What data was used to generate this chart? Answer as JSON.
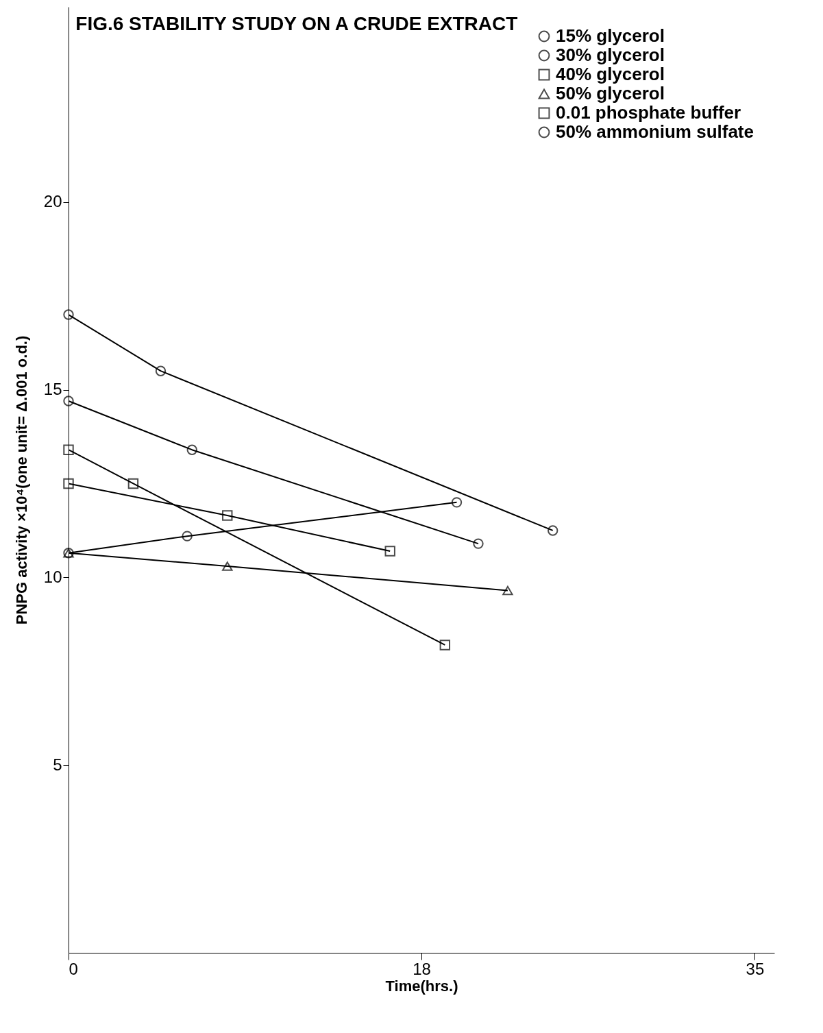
{
  "chart_data": {
    "type": "line",
    "title": "FIG.6  STABILITY  STUDY ON A CRUDE EXTRACT",
    "xlabel": "Time(hrs.)",
    "ylabel": "PNPG activity ×10⁴(one unit= Δ.001 o.d.)",
    "xlim": [
      0,
      36
    ],
    "xticks": [
      0,
      18,
      35
    ],
    "ylim": [
      0,
      25.2
    ],
    "yticks": [
      5,
      10,
      15,
      20
    ],
    "grid": false,
    "legend": "top right",
    "line_style": "solid",
    "series": [
      {
        "name": "15% glycerol",
        "color": "#000000",
        "marker": "circle",
        "x": [
          0,
          4.7,
          24.7
        ],
        "values": [
          17.0,
          15.5,
          11.25
        ]
      },
      {
        "name": "30% glycerol",
        "color": "#000000",
        "marker": "circle",
        "x": [
          0,
          6.3,
          20.9
        ],
        "values": [
          14.7,
          13.4,
          10.9
        ]
      },
      {
        "name": "40% glycerol",
        "color": "#000000",
        "marker": "square",
        "x": [
          0,
          8.1,
          16.4
        ],
        "values": [
          12.5,
          11.65,
          10.7
        ]
      },
      {
        "name": "50% glycerol",
        "color": "#000000",
        "marker": "triangle",
        "x": [
          0,
          8.1,
          22.4
        ],
        "values": [
          10.65,
          10.3,
          9.65
        ]
      },
      {
        "name": "0.01 phosphate buffer",
        "color": "#000000",
        "marker": "square",
        "x": [
          0,
          3.3,
          19.2
        ],
        "values": [
          13.4,
          12.5,
          8.2
        ]
      },
      {
        "name": "50% ammonium sulfate",
        "color": "#000000",
        "marker": "circle",
        "x": [
          0,
          6.05,
          19.8
        ],
        "values": [
          10.65,
          11.1,
          12.0
        ]
      }
    ]
  }
}
